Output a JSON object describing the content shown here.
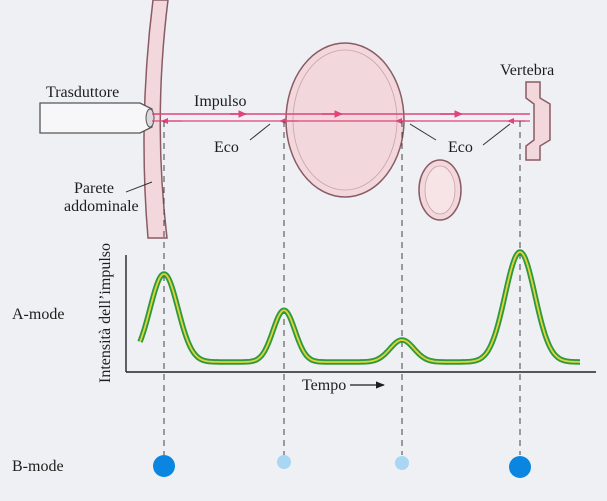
{
  "labels": {
    "transducer": "Trasduttore",
    "pulse": "Impulso",
    "echo_left": "Eco",
    "echo_right": "Eco",
    "vertebra": "Vertebra",
    "abdominal_wall_line1": "Parete",
    "abdominal_wall_line2": "addominale",
    "a_mode": "A-mode",
    "b_mode": "B-mode",
    "y_axis": "Intensità dell’impulso",
    "time_axis": "Tempo"
  },
  "a_mode_signal": {
    "series_colors": {
      "outer": "#2e9a3e",
      "inner": "#e3d23b"
    },
    "peaks": [
      {
        "structure": "abdominal wall",
        "relative_amplitude": 0.8
      },
      {
        "structure": "large organ front",
        "relative_amplitude": 0.47
      },
      {
        "structure": "large organ back",
        "relative_amplitude": 0.2
      },
      {
        "structure": "vertebra",
        "relative_amplitude": 1.0
      }
    ]
  },
  "b_mode_dots": [
    {
      "structure": "abdominal wall",
      "brightness": "strong",
      "color": "#0a86e0"
    },
    {
      "structure": "large organ front",
      "brightness": "weak",
      "color": "#a9d6f2"
    },
    {
      "structure": "large organ back",
      "brightness": "weak",
      "color": "#a9d6f2"
    },
    {
      "structure": "vertebra",
      "brightness": "strong",
      "color": "#0a86e0"
    }
  ],
  "colors": {
    "tissue_fill": "#f2d8dc",
    "tissue_stroke": "#8a5b64",
    "beam": "#e0447a"
  }
}
